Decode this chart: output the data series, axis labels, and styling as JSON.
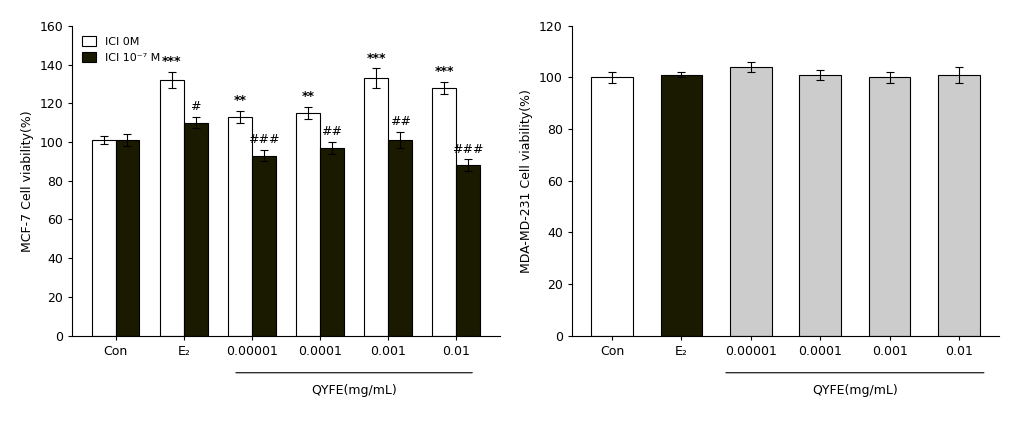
{
  "mcf7": {
    "categories": [
      "Con",
      "E₂",
      "0.00001",
      "0.0001",
      "0.001",
      "0.01"
    ],
    "ici0_values": [
      101,
      132,
      113,
      115,
      133,
      128
    ],
    "ici0_errors": [
      2,
      4,
      3,
      3,
      5,
      3
    ],
    "ici7_values": [
      101,
      110,
      93,
      97,
      101,
      88
    ],
    "ici7_errors": [
      3,
      3,
      3,
      3,
      4,
      3
    ],
    "ici0_color": "#ffffff",
    "ici7_color": "#1a1a00",
    "ylabel": "MCF-7 Cell viability(%)",
    "ylim": [
      0,
      160
    ],
    "yticks": [
      0,
      20,
      40,
      60,
      80,
      100,
      120,
      140,
      160
    ],
    "xlabel_qyfe": "QYFE(mg/mL)",
    "legend_ici0": "ICI 0M",
    "legend_ici7": "ICI 10⁻⁷ M",
    "annotations_ici0": [
      "",
      "***",
      "**",
      "**",
      "***",
      "***"
    ],
    "annotations_ici7": [
      "",
      "#",
      "###",
      "##",
      "##",
      "###"
    ],
    "qyfe_categories": [
      "0.00001",
      "0.0001",
      "0.001",
      "0.01"
    ]
  },
  "mda": {
    "categories": [
      "Con",
      "E₂",
      "0.00001",
      "0.0001",
      "0.001",
      "0.01"
    ],
    "con_values": [
      100,
      101,
      104,
      101,
      100,
      101
    ],
    "con_errors": [
      2,
      1,
      2,
      2,
      2,
      3
    ],
    "con_color_0": "#ffffff",
    "con_color_1": "#1a1a00",
    "con_color_rest": "#cccccc",
    "ylabel": "MDA-MD-231 Cell viability(%)",
    "ylim": [
      0,
      120
    ],
    "yticks": [
      0,
      20,
      40,
      60,
      80,
      100,
      120
    ],
    "xlabel_qyfe": "QYFE(mg/mL)",
    "qyfe_categories": [
      "0.00001",
      "0.0001",
      "0.001",
      "0.01"
    ]
  },
  "bar_width": 0.35,
  "edgecolor": "#000000",
  "tick_fontsize": 9,
  "label_fontsize": 9,
  "annot_fontsize": 9
}
